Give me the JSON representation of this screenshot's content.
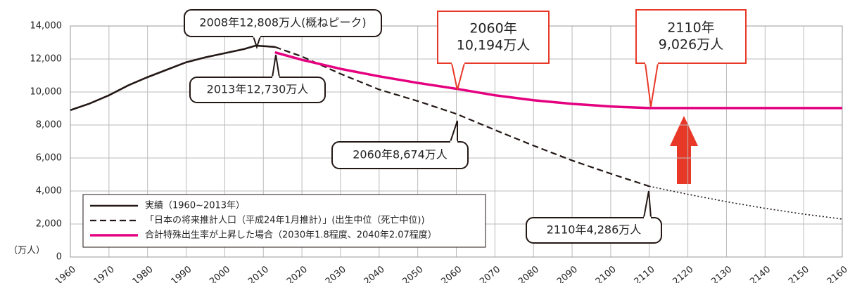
{
  "chart_data": {
    "type": "line",
    "y_unit": "（万人）",
    "xlim": [
      1960,
      2160
    ],
    "xticks": [
      1960,
      1970,
      1980,
      1990,
      2000,
      2010,
      2020,
      2030,
      2040,
      2050,
      2060,
      2070,
      2080,
      2090,
      2100,
      2110,
      2120,
      2130,
      2140,
      2150,
      2160
    ],
    "ylim": [
      0,
      14000
    ],
    "yticks": [
      0,
      {
        "value": 2000,
        "label": "2,000"
      },
      {
        "value": 4000,
        "label": "4,000"
      },
      {
        "value": 6000,
        "label": "6,000"
      },
      {
        "value": 8000,
        "label": "8,000"
      },
      {
        "value": 10000,
        "label": "10,000"
      },
      {
        "value": 12000,
        "label": "12,000"
      },
      {
        "value": 14000,
        "label": "14,000"
      }
    ],
    "grid": true,
    "legend": "lower left",
    "series": [
      {
        "name": "実績（1960~2013年）",
        "color": "#231815",
        "style": "solid",
        "x": [
          1960,
          1965,
          1970,
          1975,
          1980,
          1985,
          1990,
          1995,
          2000,
          2005,
          2008,
          2010,
          2013
        ],
        "values": [
          8900,
          9300,
          9800,
          10400,
          10900,
          11350,
          11800,
          12100,
          12350,
          12600,
          12808,
          12780,
          12730
        ]
      },
      {
        "name": "「日本の将来推計人口（平成24年1月推計）」(出生中位（死亡中位))",
        "color": "#231815",
        "style": "dashed",
        "x": [
          2013,
          2020,
          2030,
          2040,
          2050,
          2060,
          2070,
          2080,
          2090,
          2100,
          2110
        ],
        "values": [
          12730,
          12150,
          11100,
          10150,
          9450,
          8674,
          7700,
          6750,
          5850,
          5050,
          4286
        ]
      },
      {
        "name": "合計特殊出生率が上昇した場合（2030年1.8程度、2040年2.07程度）",
        "color": "#e4007f",
        "style": "solid",
        "x": [
          2013,
          2020,
          2030,
          2040,
          2050,
          2060,
          2070,
          2080,
          2090,
          2100,
          2110,
          2120,
          2130,
          2140,
          2150,
          2160
        ],
        "values": [
          12400,
          11950,
          11400,
          10950,
          10550,
          10194,
          9800,
          9500,
          9280,
          9120,
          9026,
          9026,
          9026,
          9026,
          9026,
          9026
        ]
      },
      {
        "color": "#231815",
        "style": "dotted",
        "x": [
          2110,
          2120,
          2130,
          2140,
          2150,
          2160
        ],
        "values": [
          4286,
          3800,
          3350,
          2950,
          2600,
          2300
        ]
      }
    ],
    "annotations": [
      {
        "lines": [
          "2008年12,808万人(概ねピーク)"
        ],
        "color": "#231815"
      },
      {
        "lines": [
          "2013年12,730万人"
        ],
        "color": "#231815"
      },
      {
        "lines": [
          "2060年8,674万人"
        ],
        "color": "#231815"
      },
      {
        "lines": [
          "2110年4,286万人"
        ],
        "color": "#231815"
      },
      {
        "lines": [
          "2060年",
          "10,194万人"
        ],
        "color": "#e83828"
      },
      {
        "lines": [
          "2110年",
          "9,026万人"
        ],
        "color": "#e83828"
      }
    ]
  }
}
